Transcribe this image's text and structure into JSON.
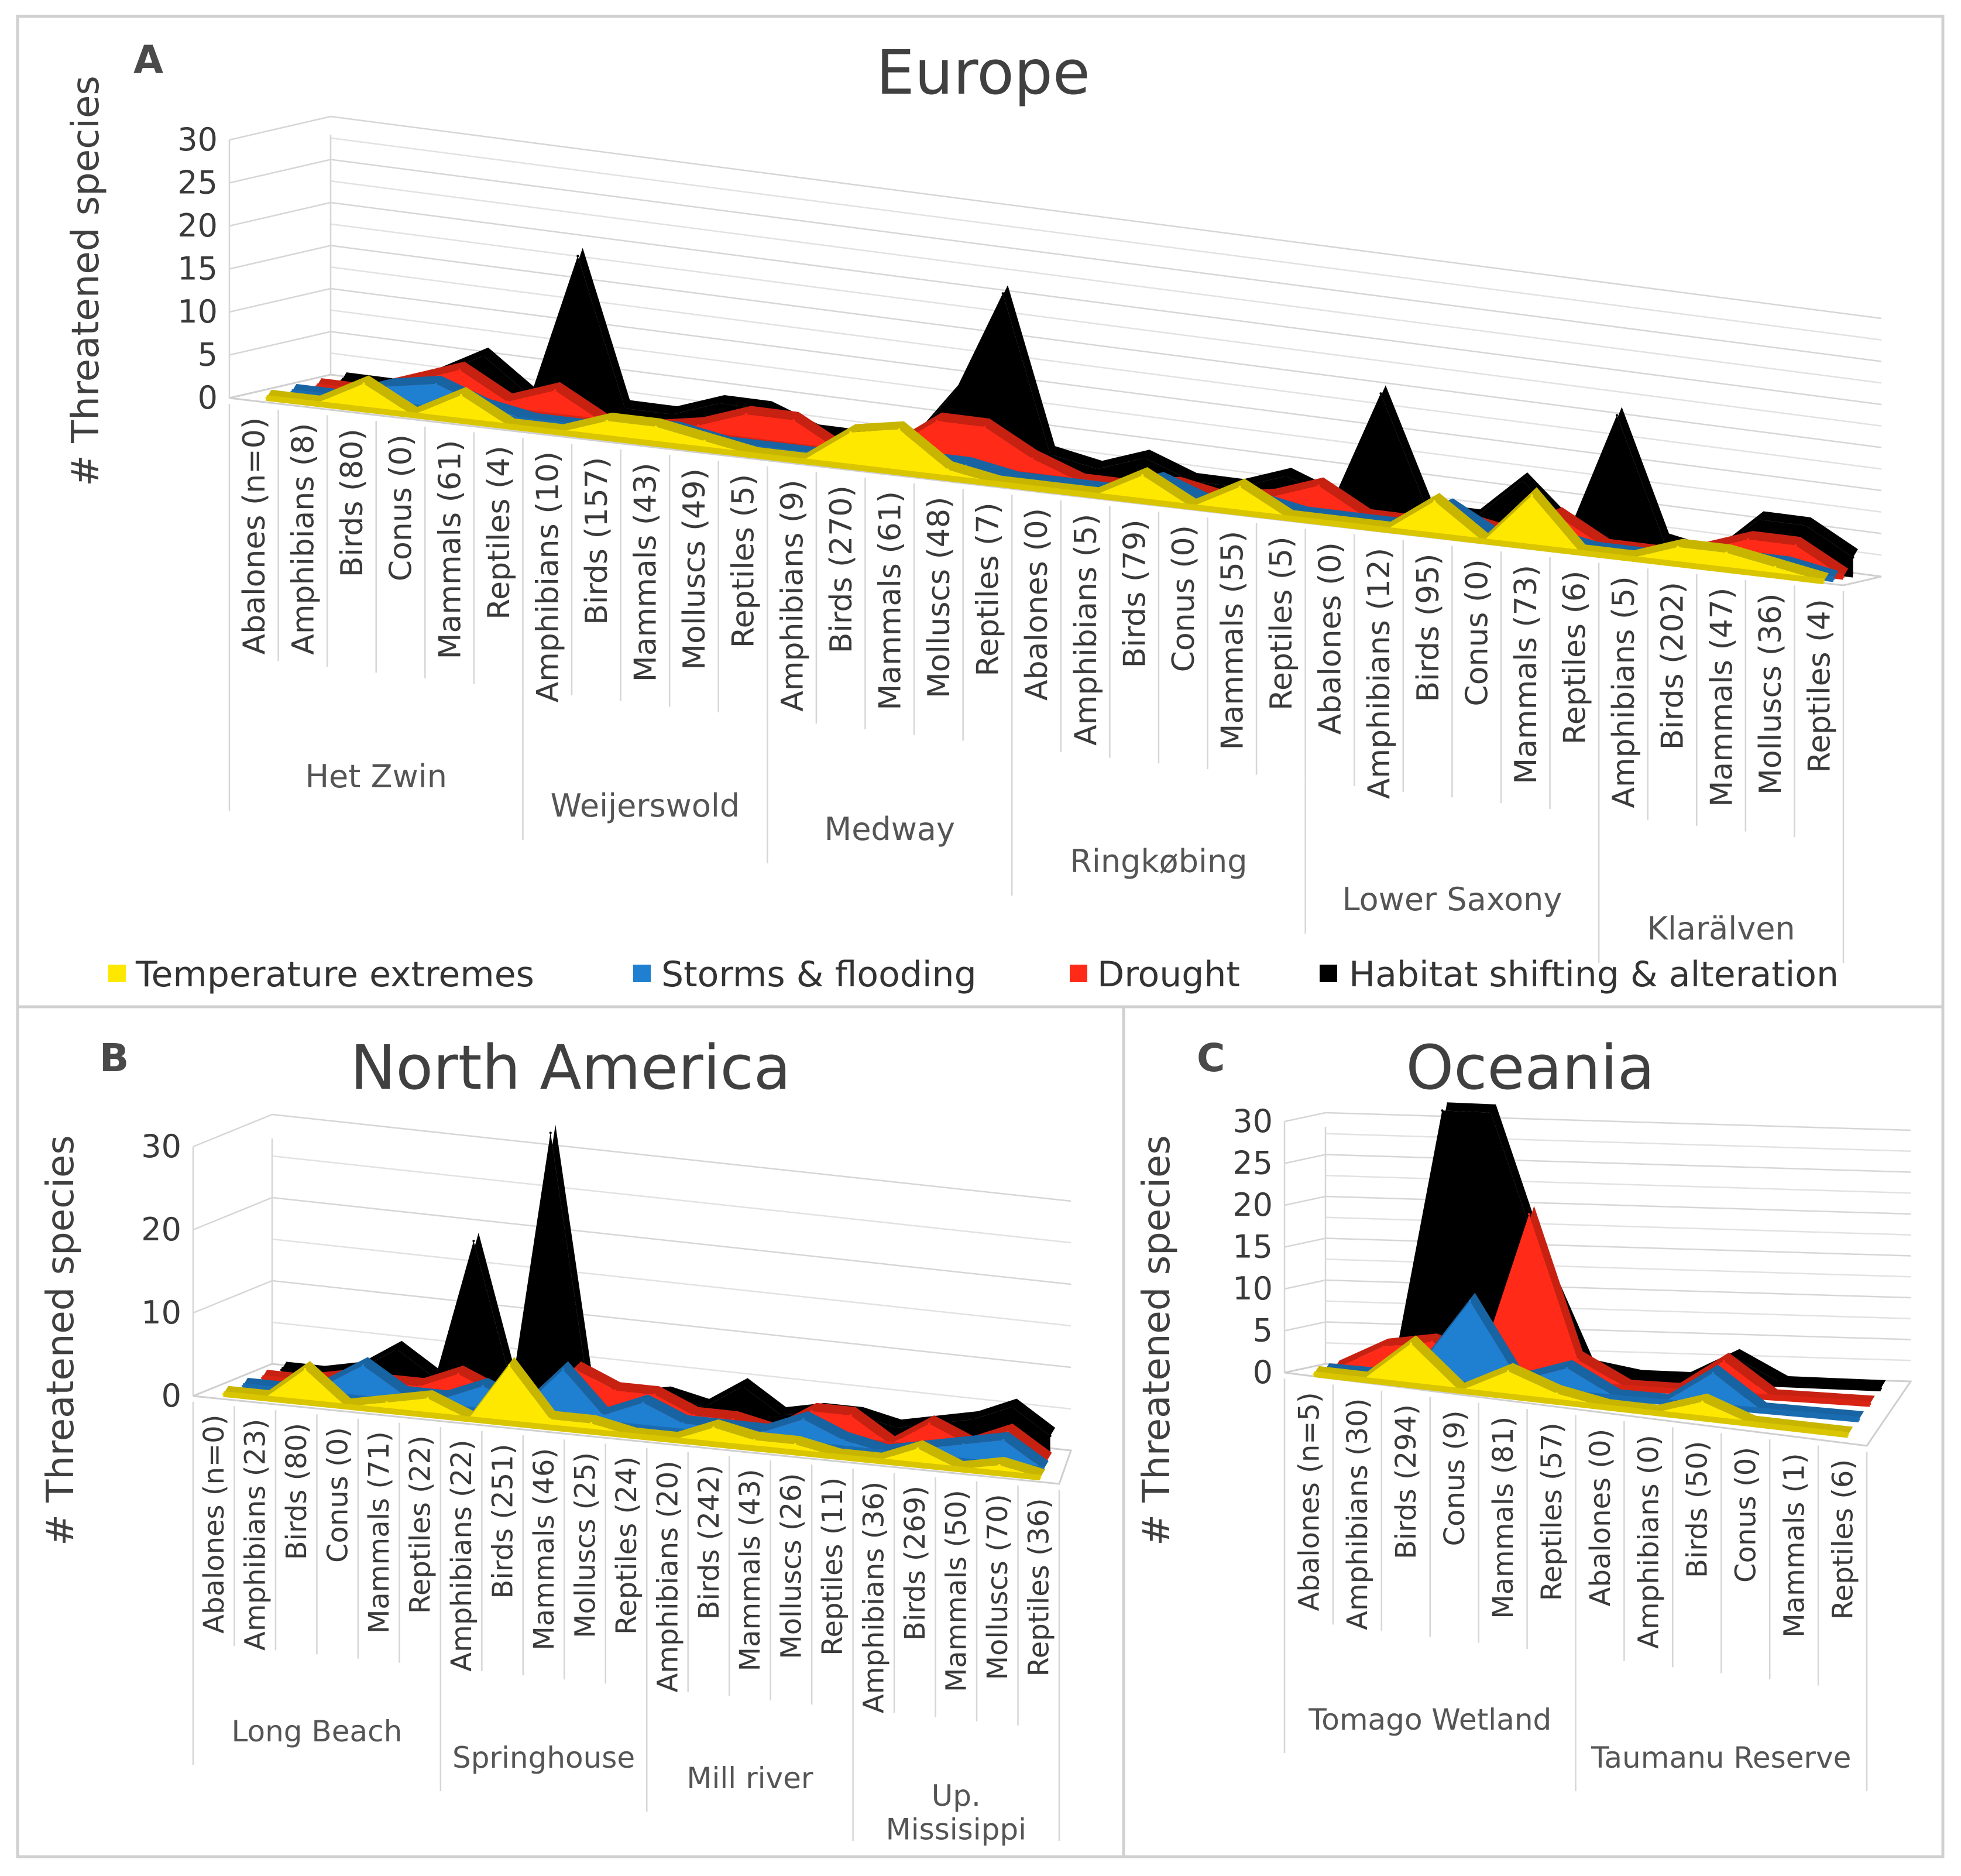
{
  "legend": [
    {
      "name": "Temperature extremes",
      "color": "#FFE800"
    },
    {
      "name": "Storms & flooding",
      "color": "#1F7FD0"
    },
    {
      "name": "Drought",
      "color": "#FF2A17"
    },
    {
      "name": "Habitat shifting & alteration",
      "color": "#000000"
    }
  ],
  "chart_data": [
    {
      "panel": "A",
      "type": "area",
      "title": "Europe",
      "ylabel": "# Threatened species",
      "ylim": [
        0,
        30
      ],
      "yticks": [
        0,
        5,
        10,
        15,
        20,
        25,
        30
      ],
      "groups": [
        {
          "name": "Het Zwin",
          "start": 0,
          "count": 6
        },
        {
          "name": "Weijerswold",
          "start": 6,
          "count": 5
        },
        {
          "name": "Medway",
          "start": 11,
          "count": 5
        },
        {
          "name": "Ringkøbing",
          "start": 16,
          "count": 6
        },
        {
          "name": "Lower Saxony",
          "start": 22,
          "count": 6
        },
        {
          "name": "Klarälven",
          "start": 28,
          "count": 5
        }
      ],
      "categories": [
        "Abalones (n=0)",
        "Amphibians (8)",
        "Birds (80)",
        "Conus (0)",
        "Mammals (61)",
        "Reptiles (4)",
        "Amphibians (10)",
        "Birds (157)",
        "Mammals (43)",
        "Molluscs (49)",
        "Reptiles (5)",
        "Amphibians (9)",
        "Birds (270)",
        "Mammals (61)",
        "Molluscs (48)",
        "Reptiles (7)",
        "Abalones (0)",
        "Amphibians (5)",
        "Birds (79)",
        "Conus (0)",
        "Mammals (55)",
        "Reptiles (5)",
        "Abalones (0)",
        "Amphibians (12)",
        "Birds (95)",
        "Conus (0)",
        "Mammals (73)",
        "Reptiles (6)",
        "Amphibians (5)",
        "Birds (202)",
        "Mammals (47)",
        "Molluscs (36)",
        "Reptiles (4)"
      ],
      "series": [
        {
          "name": "Temperature extremes",
          "values": [
            0,
            0,
            3,
            0,
            3,
            0,
            0,
            2,
            2,
            1,
            0,
            0,
            4,
            5,
            1,
            0,
            0,
            0,
            3,
            0,
            3,
            0,
            0,
            0,
            4,
            0,
            6,
            0,
            0,
            2,
            2,
            1,
            0
          ]
        },
        {
          "name": "Storms & flooding",
          "values": [
            0,
            0,
            2,
            3,
            1,
            0,
            0,
            1,
            1,
            0,
            0,
            0,
            0,
            1,
            1,
            0,
            0,
            0,
            2,
            0,
            1,
            0,
            0,
            0,
            3,
            0,
            1,
            0,
            0,
            1,
            1,
            1,
            0
          ]
        },
        {
          "name": "Drought",
          "values": [
            0,
            0,
            2,
            4,
            1,
            3,
            0,
            0,
            1,
            3,
            3,
            0,
            1,
            5,
            5,
            2,
            0,
            0,
            1,
            0,
            1,
            3,
            0,
            0,
            1,
            0,
            3,
            0,
            0,
            1,
            3,
            3,
            0
          ]
        },
        {
          "name": "Habitat shifting & alteration",
          "values": [
            0,
            0,
            2,
            5,
            1,
            18,
            1,
            1,
            3,
            3,
            1,
            1,
            1,
            8,
            20,
            2,
            1,
            3,
            1,
            1,
            3,
            1,
            14,
            1,
            1,
            6,
            1,
            15,
            1,
            0,
            5,
            5,
            2
          ]
        }
      ]
    },
    {
      "panel": "B",
      "type": "area",
      "title": "North America",
      "ylabel": "# Threatened species",
      "ylim": [
        0,
        30
      ],
      "yticks": [
        0,
        10,
        20,
        30
      ],
      "groups": [
        {
          "name": "Long Beach",
          "start": 0,
          "count": 6
        },
        {
          "name": "Springhouse",
          "start": 6,
          "count": 5
        },
        {
          "name": "Mill river",
          "start": 11,
          "count": 5
        },
        {
          "name": "Up. Missisippi",
          "start": 16,
          "count": 5
        }
      ],
      "categories": [
        "Abalones (n=0)",
        "Amphibians (23)",
        "Birds (80)",
        "Conus (0)",
        "Mammals (71)",
        "Reptiles (22)",
        "Amphibians (22)",
        "Birds (251)",
        "Mammals (46)",
        "Molluscs (25)",
        "Reptiles (24)",
        "Amphibians (20)",
        "Birds (242)",
        "Mammals (43)",
        "Molluscs (26)",
        "Reptiles (11)",
        "Amphibians (36)",
        "Birds (269)",
        "Mammals (50)",
        "Molluscs (70)",
        "Reptiles (36)"
      ],
      "series": [
        {
          "name": "Temperature extremes",
          "values": [
            0,
            0,
            4,
            0,
            1,
            2,
            0,
            7,
            1,
            1,
            0,
            0,
            2,
            1,
            1,
            0,
            0,
            2,
            0,
            1,
            0
          ]
        },
        {
          "name": "Storms & flooding",
          "values": [
            0,
            0,
            1,
            4,
            1,
            1,
            3,
            1,
            6,
            1,
            3,
            1,
            1,
            1,
            3,
            1,
            0,
            1,
            2,
            3,
            0
          ]
        },
        {
          "name": "Drought",
          "values": [
            0,
            0,
            1,
            1,
            1,
            3,
            1,
            0,
            5,
            3,
            3,
            1,
            1,
            0,
            3,
            3,
            0,
            3,
            1,
            3,
            0
          ]
        },
        {
          "name": "Habitat shifting & alteration",
          "values": [
            0,
            0,
            1,
            4,
            1,
            18,
            1,
            32,
            1,
            1,
            2,
            1,
            4,
            1,
            2,
            2,
            1,
            2,
            3,
            5,
            2
          ]
        }
      ]
    },
    {
      "panel": "C",
      "type": "area",
      "title": "Oceania",
      "ylabel": "# Threatened species",
      "ylim": [
        0,
        30
      ],
      "yticks": [
        0,
        5,
        10,
        15,
        20,
        25,
        30
      ],
      "groups": [
        {
          "name": "Tomago Wetland",
          "start": 0,
          "count": 6
        },
        {
          "name": "Taumanu Reserve",
          "start": 6,
          "count": 6
        }
      ],
      "categories": [
        "Abalones (n=5)",
        "Amphibians (30)",
        "Birds (294)",
        "Conus (9)",
        "Mammals (81)",
        "Reptiles (57)",
        "Abalones (0)",
        "Amphibians (0)",
        "Birds (50)",
        "Conus (0)",
        "Mammals (1)",
        "Reptiles (6)"
      ],
      "series": [
        {
          "name": "Temperature extremes",
          "values": [
            0,
            0,
            5,
            0,
            3,
            1,
            0,
            0,
            2,
            0,
            0,
            0
          ]
        },
        {
          "name": "Storms & flooding",
          "values": [
            0,
            0,
            2,
            10,
            1,
            3,
            0,
            0,
            4,
            0,
            0,
            0
          ]
        },
        {
          "name": "Drought",
          "values": [
            0,
            3,
            4,
            2,
            20,
            3,
            0,
            0,
            4,
            0,
            0,
            0
          ]
        },
        {
          "name": "Habitat shifting & alteration",
          "values": [
            0,
            0,
            31,
            31,
            14,
            1,
            0,
            0,
            3,
            0,
            0,
            0
          ]
        }
      ]
    }
  ]
}
